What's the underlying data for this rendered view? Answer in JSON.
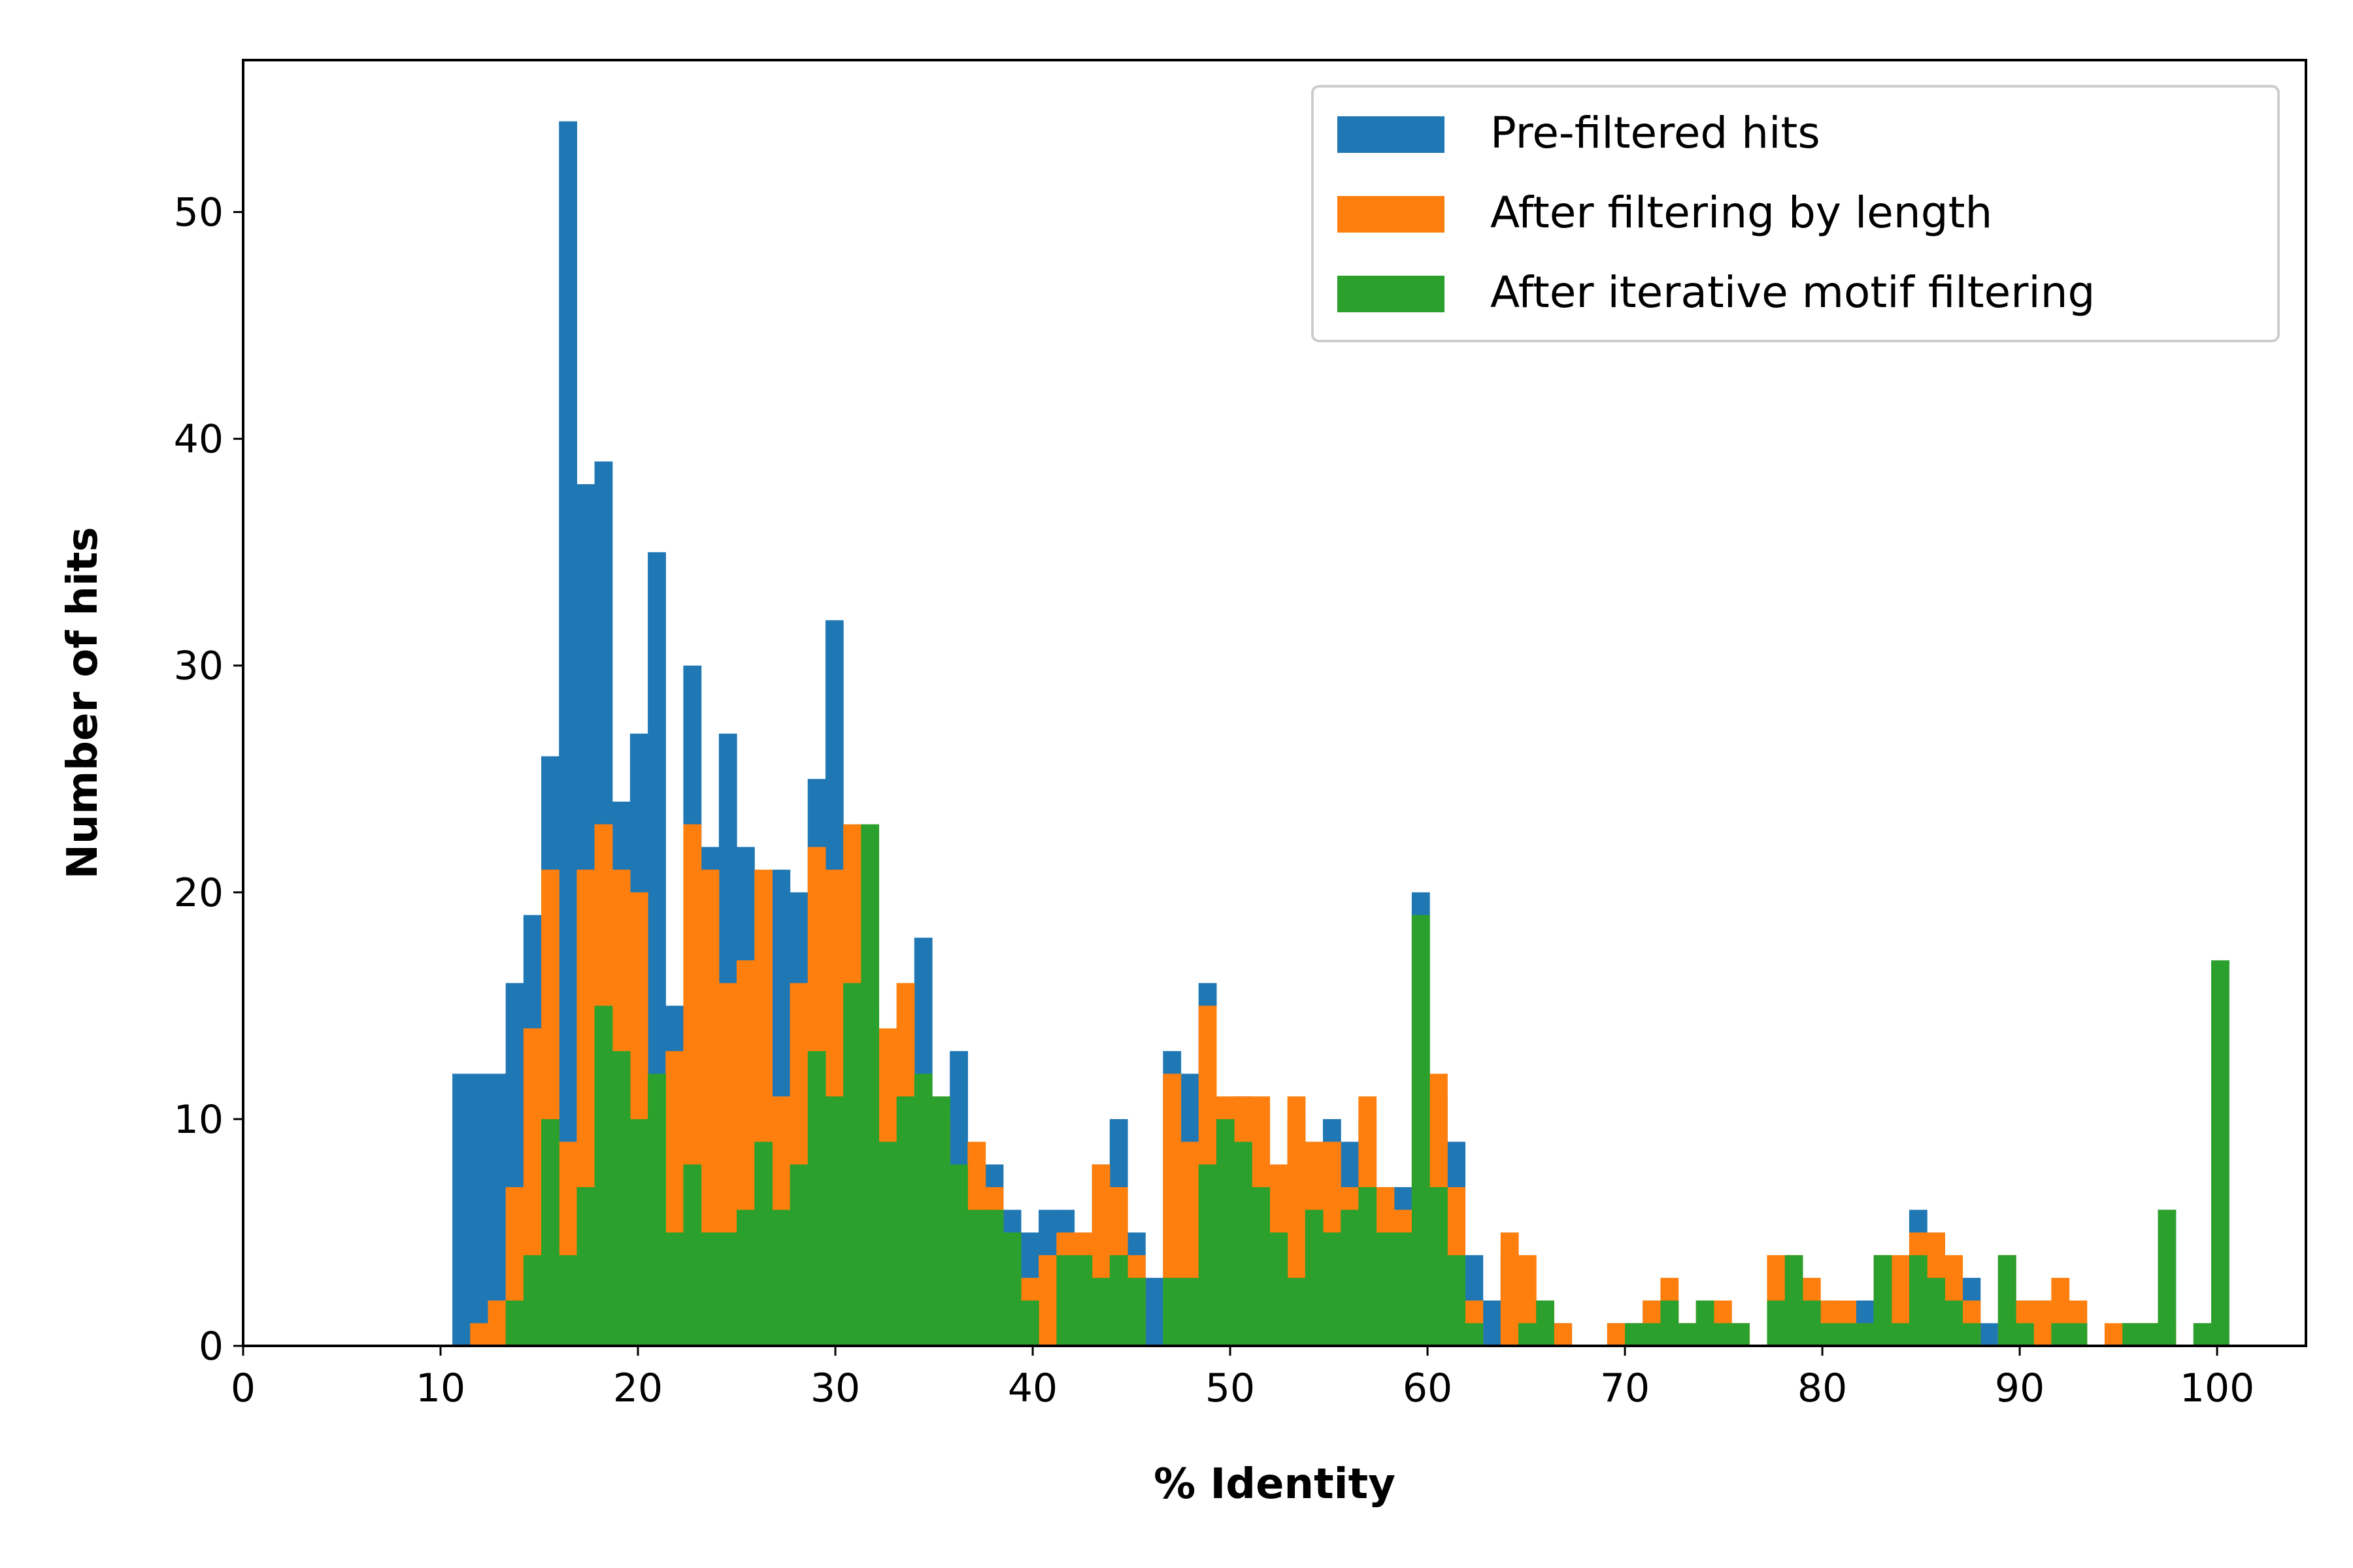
{
  "chart_data": {
    "type": "bar",
    "title": "",
    "xlabel": "% Identity",
    "ylabel": "Number of hits",
    "xlim": [
      0,
      104.5
    ],
    "ylim": [
      0,
      56.7
    ],
    "xticks": [
      0,
      10,
      20,
      30,
      40,
      50,
      60,
      70,
      80,
      90,
      100
    ],
    "yticks": [
      0,
      10,
      20,
      30,
      40,
      50
    ],
    "bin_width": 0.9,
    "grid": false,
    "legend_position": "top-right",
    "series": [
      {
        "name": "Pre-filtered hits",
        "color": "#1f77b4",
        "points": [
          [
            10.6,
            12
          ],
          [
            11.5,
            12
          ],
          [
            12.4,
            12
          ],
          [
            13.3,
            16
          ],
          [
            14.2,
            19
          ],
          [
            15.1,
            26
          ],
          [
            16.0,
            54
          ],
          [
            16.9,
            38
          ],
          [
            17.8,
            39
          ],
          [
            18.7,
            24
          ],
          [
            19.6,
            27
          ],
          [
            20.5,
            35
          ],
          [
            21.4,
            15
          ],
          [
            22.3,
            30
          ],
          [
            23.2,
            22
          ],
          [
            24.1,
            27
          ],
          [
            25.0,
            22
          ],
          [
            25.9,
            15
          ],
          [
            26.8,
            21
          ],
          [
            27.7,
            20
          ],
          [
            28.6,
            25
          ],
          [
            29.5,
            32
          ],
          [
            30.4,
            14
          ],
          [
            31.3,
            12
          ],
          [
            32.2,
            11
          ],
          [
            33.1,
            14
          ],
          [
            34.0,
            18
          ],
          [
            34.9,
            9
          ],
          [
            35.8,
            13
          ],
          [
            36.7,
            8
          ],
          [
            37.6,
            8
          ],
          [
            38.5,
            6
          ],
          [
            39.4,
            5
          ],
          [
            40.3,
            6
          ],
          [
            41.2,
            6
          ],
          [
            42.1,
            5
          ],
          [
            43.0,
            8
          ],
          [
            43.9,
            10
          ],
          [
            44.8,
            5
          ],
          [
            45.7,
            3
          ],
          [
            46.6,
            13
          ],
          [
            47.5,
            12
          ],
          [
            48.4,
            16
          ],
          [
            49.3,
            9
          ],
          [
            50.2,
            11
          ],
          [
            51.1,
            9
          ],
          [
            52.0,
            7
          ],
          [
            52.9,
            10
          ],
          [
            53.8,
            9
          ],
          [
            54.7,
            10
          ],
          [
            55.6,
            9
          ],
          [
            56.5,
            10
          ],
          [
            57.4,
            5
          ],
          [
            58.3,
            7
          ],
          [
            59.2,
            20
          ],
          [
            60.1,
            11
          ],
          [
            61.0,
            9
          ],
          [
            61.9,
            4
          ],
          [
            62.8,
            2
          ],
          [
            63.7,
            4
          ],
          [
            64.6,
            2
          ],
          [
            65.5,
            2
          ],
          [
            66.4,
            1
          ],
          [
            67.3,
            0
          ],
          [
            68.2,
            0
          ],
          [
            69.1,
            1
          ],
          [
            70.0,
            1
          ],
          [
            70.9,
            2
          ],
          [
            71.8,
            2
          ],
          [
            72.7,
            1
          ],
          [
            73.6,
            2
          ],
          [
            74.5,
            1
          ],
          [
            75.4,
            1
          ],
          [
            76.3,
            0
          ],
          [
            77.2,
            3
          ],
          [
            78.1,
            3
          ],
          [
            79.0,
            2
          ],
          [
            79.9,
            2
          ],
          [
            80.8,
            1
          ],
          [
            81.7,
            2
          ],
          [
            82.6,
            4
          ],
          [
            83.5,
            3
          ],
          [
            84.4,
            6
          ],
          [
            85.3,
            5
          ],
          [
            86.2,
            3
          ],
          [
            87.1,
            3
          ],
          [
            88.0,
            1
          ],
          [
            88.9,
            4
          ],
          [
            89.8,
            2
          ],
          [
            90.7,
            2
          ],
          [
            91.6,
            2
          ],
          [
            92.5,
            1
          ],
          [
            93.4,
            0
          ],
          [
            94.3,
            0
          ],
          [
            95.2,
            1
          ],
          [
            96.1,
            1
          ],
          [
            97.0,
            6
          ],
          [
            97.9,
            0
          ],
          [
            98.8,
            1
          ],
          [
            99.7,
            17
          ]
        ]
      },
      {
        "name": "After filtering by length",
        "color": "#ff7f0e",
        "points": [
          [
            10.6,
            0
          ],
          [
            11.5,
            1
          ],
          [
            12.4,
            2
          ],
          [
            13.3,
            7
          ],
          [
            14.2,
            14
          ],
          [
            15.1,
            21
          ],
          [
            16.0,
            9
          ],
          [
            16.9,
            21
          ],
          [
            17.8,
            23
          ],
          [
            18.7,
            21
          ],
          [
            19.6,
            20
          ],
          [
            20.5,
            10
          ],
          [
            21.4,
            13
          ],
          [
            22.3,
            23
          ],
          [
            23.2,
            21
          ],
          [
            24.1,
            16
          ],
          [
            25.0,
            17
          ],
          [
            25.9,
            21
          ],
          [
            26.8,
            11
          ],
          [
            27.7,
            16
          ],
          [
            28.6,
            22
          ],
          [
            29.5,
            21
          ],
          [
            30.4,
            23
          ],
          [
            31.3,
            15
          ],
          [
            32.2,
            14
          ],
          [
            33.1,
            16
          ],
          [
            34.0,
            11
          ],
          [
            34.9,
            10
          ],
          [
            35.8,
            7
          ],
          [
            36.7,
            9
          ],
          [
            37.6,
            7
          ],
          [
            38.5,
            5
          ],
          [
            39.4,
            3
          ],
          [
            40.3,
            4
          ],
          [
            41.2,
            5
          ],
          [
            42.1,
            5
          ],
          [
            43.0,
            8
          ],
          [
            43.9,
            7
          ],
          [
            44.8,
            4
          ],
          [
            45.7,
            0
          ],
          [
            46.6,
            12
          ],
          [
            47.5,
            9
          ],
          [
            48.4,
            15
          ],
          [
            49.3,
            11
          ],
          [
            50.2,
            11
          ],
          [
            51.1,
            11
          ],
          [
            52.0,
            8
          ],
          [
            52.9,
            11
          ],
          [
            53.8,
            9
          ],
          [
            54.7,
            9
          ],
          [
            55.6,
            7
          ],
          [
            56.5,
            11
          ],
          [
            57.4,
            7
          ],
          [
            58.3,
            6
          ],
          [
            59.2,
            12
          ],
          [
            60.1,
            12
          ],
          [
            61.0,
            7
          ],
          [
            61.9,
            2
          ],
          [
            62.8,
            0
          ],
          [
            63.7,
            5
          ],
          [
            64.6,
            4
          ],
          [
            65.5,
            2
          ],
          [
            66.4,
            1
          ],
          [
            67.3,
            0
          ],
          [
            68.2,
            0
          ],
          [
            69.1,
            1
          ],
          [
            70.0,
            1
          ],
          [
            70.9,
            2
          ],
          [
            71.8,
            3
          ],
          [
            72.7,
            1
          ],
          [
            73.6,
            2
          ],
          [
            74.5,
            2
          ],
          [
            75.4,
            1
          ],
          [
            76.3,
            0
          ],
          [
            77.2,
            4
          ],
          [
            78.1,
            4
          ],
          [
            79.0,
            3
          ],
          [
            79.9,
            2
          ],
          [
            80.8,
            2
          ],
          [
            81.7,
            1
          ],
          [
            82.6,
            4
          ],
          [
            83.5,
            4
          ],
          [
            84.4,
            5
          ],
          [
            85.3,
            5
          ],
          [
            86.2,
            4
          ],
          [
            87.1,
            2
          ],
          [
            88.0,
            0
          ],
          [
            88.9,
            4
          ],
          [
            89.8,
            2
          ],
          [
            90.7,
            2
          ],
          [
            91.6,
            3
          ],
          [
            92.5,
            2
          ],
          [
            93.4,
            0
          ],
          [
            94.3,
            1
          ],
          [
            95.2,
            1
          ],
          [
            96.1,
            1
          ],
          [
            97.0,
            1
          ],
          [
            97.9,
            0
          ],
          [
            98.8,
            0
          ],
          [
            99.7,
            0
          ]
        ]
      },
      {
        "name": "After iterative motif filtering",
        "color": "#2ca02c",
        "points": [
          [
            10.6,
            0
          ],
          [
            11.5,
            0
          ],
          [
            12.4,
            0
          ],
          [
            13.3,
            2
          ],
          [
            14.2,
            4
          ],
          [
            15.1,
            10
          ],
          [
            16.0,
            4
          ],
          [
            16.9,
            7
          ],
          [
            17.8,
            15
          ],
          [
            18.7,
            13
          ],
          [
            19.6,
            10
          ],
          [
            20.5,
            12
          ],
          [
            21.4,
            5
          ],
          [
            22.3,
            8
          ],
          [
            23.2,
            5
          ],
          [
            24.1,
            5
          ],
          [
            25.0,
            6
          ],
          [
            25.9,
            9
          ],
          [
            26.8,
            6
          ],
          [
            27.7,
            8
          ],
          [
            28.6,
            13
          ],
          [
            29.5,
            11
          ],
          [
            30.4,
            16
          ],
          [
            31.3,
            23
          ],
          [
            32.2,
            9
          ],
          [
            33.1,
            11
          ],
          [
            34.0,
            12
          ],
          [
            34.9,
            11
          ],
          [
            35.8,
            8
          ],
          [
            36.7,
            6
          ],
          [
            37.6,
            6
          ],
          [
            38.5,
            5
          ],
          [
            39.4,
            2
          ],
          [
            40.3,
            0
          ],
          [
            41.2,
            4
          ],
          [
            42.1,
            4
          ],
          [
            43.0,
            3
          ],
          [
            43.9,
            4
          ],
          [
            44.8,
            3
          ],
          [
            45.7,
            0
          ],
          [
            46.6,
            3
          ],
          [
            47.5,
            3
          ],
          [
            48.4,
            8
          ],
          [
            49.3,
            10
          ],
          [
            50.2,
            9
          ],
          [
            51.1,
            7
          ],
          [
            52.0,
            5
          ],
          [
            52.9,
            3
          ],
          [
            53.8,
            6
          ],
          [
            54.7,
            5
          ],
          [
            55.6,
            6
          ],
          [
            56.5,
            7
          ],
          [
            57.4,
            5
          ],
          [
            58.3,
            5
          ],
          [
            59.2,
            19
          ],
          [
            60.1,
            7
          ],
          [
            61.0,
            4
          ],
          [
            61.9,
            1
          ],
          [
            62.8,
            0
          ],
          [
            63.7,
            0
          ],
          [
            64.6,
            1
          ],
          [
            65.5,
            2
          ],
          [
            66.4,
            0
          ],
          [
            67.3,
            0
          ],
          [
            68.2,
            0
          ],
          [
            69.1,
            0
          ],
          [
            70.0,
            1
          ],
          [
            70.9,
            1
          ],
          [
            71.8,
            2
          ],
          [
            72.7,
            1
          ],
          [
            73.6,
            2
          ],
          [
            74.5,
            1
          ],
          [
            75.4,
            1
          ],
          [
            76.3,
            0
          ],
          [
            77.2,
            2
          ],
          [
            78.1,
            4
          ],
          [
            79.0,
            2
          ],
          [
            79.9,
            1
          ],
          [
            80.8,
            1
          ],
          [
            81.7,
            1
          ],
          [
            82.6,
            4
          ],
          [
            83.5,
            1
          ],
          [
            84.4,
            4
          ],
          [
            85.3,
            3
          ],
          [
            86.2,
            2
          ],
          [
            87.1,
            1
          ],
          [
            88.0,
            0
          ],
          [
            88.9,
            4
          ],
          [
            89.8,
            1
          ],
          [
            90.7,
            0
          ],
          [
            91.6,
            1
          ],
          [
            92.5,
            1
          ],
          [
            93.4,
            0
          ],
          [
            94.3,
            0
          ],
          [
            95.2,
            1
          ],
          [
            96.1,
            1
          ],
          [
            97.0,
            6
          ],
          [
            97.9,
            0
          ],
          [
            98.8,
            1
          ],
          [
            99.7,
            17
          ]
        ]
      }
    ]
  }
}
